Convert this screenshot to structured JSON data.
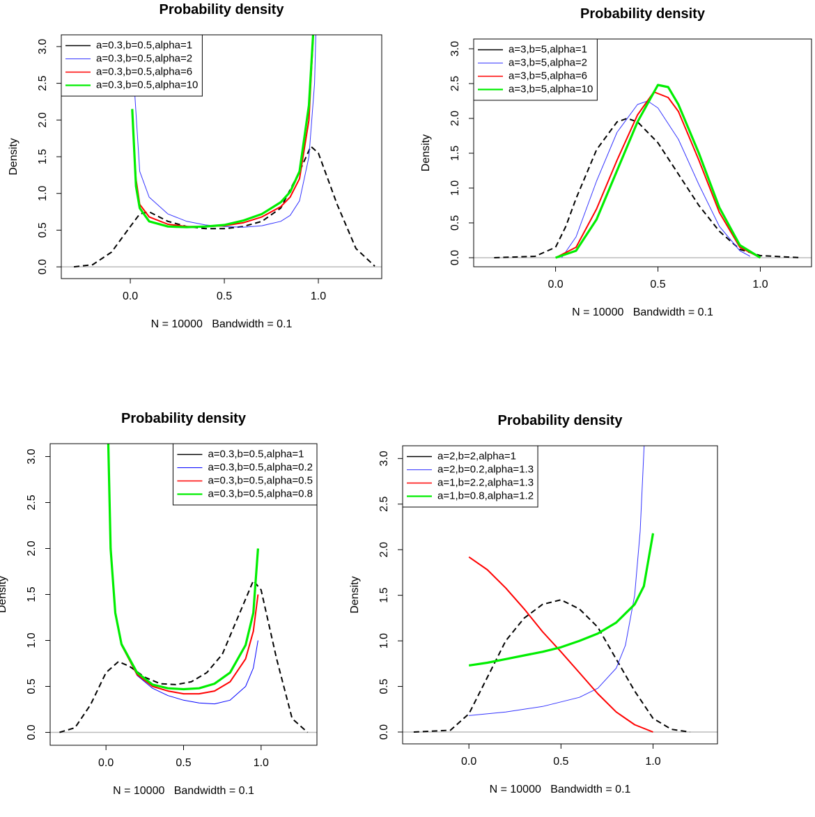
{
  "chart_data": [
    {
      "type": "line",
      "title": "Probability density",
      "xlabel": "N = 10000   Bandwidth = 0.1",
      "ylabel": "Density",
      "xlim": [
        -0.367,
        1.337
      ],
      "ylim": [
        -0.16,
        3.16
      ],
      "xticks": [
        {
          "value": 0,
          "label": "0.0"
        },
        0.5,
        {
          "value": 1,
          "label": "1.0"
        }
      ],
      "yticks": [
        {
          "value": 0,
          "label": "0.0"
        },
        0.5,
        {
          "value": 1,
          "label": "1.0"
        },
        1.5,
        {
          "value": 2,
          "label": "2.0"
        },
        2.5,
        {
          "value": 3,
          "label": "3.0"
        }
      ],
      "legend": "top-left",
      "series": [
        {
          "name": "a=0.3,b=0.5,alpha=1",
          "color": "#000000",
          "style": "dashed",
          "x": [
            -0.3,
            -0.2,
            -0.1,
            0.0,
            0.05,
            0.1,
            0.2,
            0.3,
            0.4,
            0.5,
            0.6,
            0.7,
            0.8,
            0.9,
            0.96,
            1.0,
            1.1,
            1.2,
            1.3
          ],
          "values": [
            0,
            0.03,
            0.2,
            0.55,
            0.72,
            0.75,
            0.62,
            0.55,
            0.52,
            0.52,
            0.55,
            0.62,
            0.8,
            1.3,
            1.64,
            1.55,
            0.85,
            0.25,
            0.01
          ]
        },
        {
          "name": "a=0.3,b=0.5,alpha=2",
          "color": "#3333ff",
          "x": [
            0.01,
            0.02,
            0.05,
            0.1,
            0.2,
            0.3,
            0.4,
            0.5,
            0.6,
            0.7,
            0.8,
            0.85,
            0.9,
            0.95,
            0.98,
            0.99
          ],
          "values": [
            3.5,
            2.5,
            1.3,
            0.95,
            0.72,
            0.62,
            0.57,
            0.55,
            0.54,
            0.56,
            0.62,
            0.7,
            0.9,
            1.5,
            2.5,
            3.5
          ]
        },
        {
          "name": "a=0.3,b=0.5,alpha=6",
          "color": "#ff0000",
          "x": [
            0.01,
            0.03,
            0.05,
            0.1,
            0.2,
            0.3,
            0.4,
            0.5,
            0.6,
            0.7,
            0.8,
            0.85,
            0.9,
            0.95,
            0.98
          ],
          "values": [
            2.1,
            1.2,
            0.85,
            0.68,
            0.58,
            0.55,
            0.55,
            0.56,
            0.6,
            0.68,
            0.82,
            0.95,
            1.2,
            2.0,
            3.5
          ]
        },
        {
          "name": "a=0.3,b=0.5,alpha=10",
          "color": "#00ee00",
          "x": [
            0.01,
            0.03,
            0.05,
            0.1,
            0.2,
            0.3,
            0.4,
            0.5,
            0.6,
            0.7,
            0.8,
            0.85,
            0.9,
            0.95,
            0.98
          ],
          "values": [
            2.15,
            1.1,
            0.8,
            0.62,
            0.55,
            0.54,
            0.55,
            0.57,
            0.63,
            0.72,
            0.88,
            1.02,
            1.3,
            2.2,
            3.5
          ]
        }
      ]
    },
    {
      "type": "line",
      "title": "Probability density",
      "xlabel": "N = 10000   Bandwidth = 0.1",
      "ylabel": "Density",
      "xlim": [
        -0.4,
        1.25
      ],
      "ylim": [
        -0.13,
        3.14
      ],
      "xticks": [
        {
          "value": 0,
          "label": "0.0"
        },
        0.5,
        {
          "value": 1,
          "label": "1.0"
        }
      ],
      "yticks": [
        {
          "value": 0,
          "label": "0.0"
        },
        0.5,
        {
          "value": 1,
          "label": "1.0"
        },
        1.5,
        {
          "value": 2,
          "label": "2.0"
        },
        2.5,
        {
          "value": 3,
          "label": "3.0"
        }
      ],
      "legend": "top-left",
      "series": [
        {
          "name": "a=3,b=5,alpha=1",
          "color": "#000000",
          "style": "dashed",
          "x": [
            -0.3,
            -0.1,
            0.0,
            0.05,
            0.1,
            0.2,
            0.3,
            0.35,
            0.4,
            0.5,
            0.6,
            0.7,
            0.8,
            0.9,
            1.0,
            1.2
          ],
          "values": [
            0,
            0.02,
            0.15,
            0.45,
            0.85,
            1.55,
            1.95,
            2.0,
            1.95,
            1.65,
            1.2,
            0.75,
            0.38,
            0.12,
            0.03,
            0
          ]
        },
        {
          "name": "a=3,b=5,alpha=2",
          "color": "#3333ff",
          "x": [
            0.03,
            0.1,
            0.2,
            0.3,
            0.4,
            0.45,
            0.5,
            0.6,
            0.7,
            0.8,
            0.9,
            0.95
          ],
          "values": [
            0,
            0.3,
            1.1,
            1.8,
            2.2,
            2.25,
            2.15,
            1.7,
            1.05,
            0.45,
            0.1,
            0.02
          ]
        },
        {
          "name": "a=3,b=5,alpha=6",
          "color": "#ff0000",
          "x": [
            0.0,
            0.1,
            0.2,
            0.3,
            0.4,
            0.48,
            0.55,
            0.6,
            0.7,
            0.8,
            0.9,
            1.0
          ],
          "values": [
            0,
            0.15,
            0.7,
            1.4,
            2.05,
            2.38,
            2.3,
            2.1,
            1.4,
            0.65,
            0.15,
            0
          ]
        },
        {
          "name": "a=3,b=5,alpha=10",
          "color": "#00ee00",
          "x": [
            0.0,
            0.1,
            0.2,
            0.3,
            0.4,
            0.5,
            0.55,
            0.6,
            0.7,
            0.8,
            0.9,
            1.0
          ],
          "values": [
            0,
            0.1,
            0.55,
            1.25,
            1.95,
            2.48,
            2.45,
            2.2,
            1.5,
            0.72,
            0.18,
            0
          ]
        }
      ]
    },
    {
      "type": "line",
      "title": "Probability density",
      "xlabel": "N = 10000   Bandwidth = 0.1",
      "ylabel": "Density",
      "xlim": [
        -0.36,
        1.36
      ],
      "ylim": [
        -0.14,
        3.14
      ],
      "xticks": [
        {
          "value": 0,
          "label": "0.0"
        },
        0.5,
        {
          "value": 1,
          "label": "1.0"
        }
      ],
      "yticks": [
        {
          "value": 0,
          "label": "0.0"
        },
        0.5,
        {
          "value": 1,
          "label": "1.0"
        },
        1.5,
        {
          "value": 2,
          "label": "2.0"
        },
        2.5,
        {
          "value": 3,
          "label": "3.0"
        }
      ],
      "legend": "top-right",
      "series": [
        {
          "name": "a=0.3,b=0.5,alpha=1",
          "color": "#000000",
          "style": "dashed",
          "x": [
            -0.3,
            -0.2,
            -0.1,
            0.0,
            0.08,
            0.15,
            0.25,
            0.35,
            0.45,
            0.55,
            0.65,
            0.75,
            0.85,
            0.95,
            1.0,
            1.1,
            1.2,
            1.3
          ],
          "values": [
            0,
            0.05,
            0.3,
            0.65,
            0.77,
            0.72,
            0.6,
            0.53,
            0.52,
            0.55,
            0.65,
            0.85,
            1.25,
            1.65,
            1.55,
            0.8,
            0.15,
            0
          ]
        },
        {
          "name": "a=0.3,b=0.5,alpha=0.2",
          "color": "#0000ff",
          "x": [
            0.01,
            0.03,
            0.06,
            0.1,
            0.2,
            0.3,
            0.4,
            0.5,
            0.6,
            0.7,
            0.8,
            0.9,
            0.95,
            0.98
          ],
          "values": [
            3.5,
            2.0,
            1.3,
            0.95,
            0.62,
            0.48,
            0.4,
            0.35,
            0.32,
            0.31,
            0.35,
            0.5,
            0.7,
            1.0
          ]
        },
        {
          "name": "a=0.3,b=0.5,alpha=0.5",
          "color": "#ff0000",
          "x": [
            0.01,
            0.03,
            0.06,
            0.1,
            0.2,
            0.3,
            0.4,
            0.5,
            0.6,
            0.7,
            0.8,
            0.9,
            0.95,
            0.98
          ],
          "values": [
            3.5,
            2.0,
            1.3,
            0.95,
            0.63,
            0.5,
            0.45,
            0.42,
            0.42,
            0.45,
            0.55,
            0.8,
            1.1,
            1.5
          ]
        },
        {
          "name": "a=0.3,b=0.5,alpha=0.8",
          "color": "#00ee00",
          "x": [
            0.01,
            0.03,
            0.06,
            0.1,
            0.2,
            0.3,
            0.4,
            0.5,
            0.6,
            0.7,
            0.8,
            0.9,
            0.95,
            0.98
          ],
          "values": [
            3.5,
            2.0,
            1.3,
            0.96,
            0.65,
            0.52,
            0.48,
            0.47,
            0.48,
            0.53,
            0.65,
            0.95,
            1.3,
            2.0
          ]
        }
      ]
    },
    {
      "type": "line",
      "title": "Probability density",
      "xlabel": "N = 10000   Bandwidth = 0.1",
      "ylabel": "Density",
      "xlim": [
        -0.36,
        1.35
      ],
      "ylim": [
        -0.13,
        3.14
      ],
      "xticks": [
        {
          "value": 0,
          "label": "0.0"
        },
        0.5,
        {
          "value": 1,
          "label": "1.0"
        }
      ],
      "yticks": [
        {
          "value": 0,
          "label": "0.0"
        },
        0.5,
        {
          "value": 1,
          "label": "1.0"
        },
        1.5,
        {
          "value": 2,
          "label": "2.0"
        },
        2.5,
        {
          "value": 3,
          "label": "3.0"
        }
      ],
      "legend": "top-left",
      "series": [
        {
          "name": "a=2,b=2,alpha=1",
          "color": "#000000",
          "style": "dashed",
          "x": [
            -0.3,
            -0.1,
            0.0,
            0.1,
            0.2,
            0.3,
            0.4,
            0.5,
            0.6,
            0.7,
            0.8,
            0.9,
            1.0,
            1.1,
            1.2
          ],
          "values": [
            0,
            0.02,
            0.2,
            0.6,
            1.0,
            1.25,
            1.4,
            1.45,
            1.35,
            1.15,
            0.8,
            0.45,
            0.15,
            0.03,
            0
          ]
        },
        {
          "name": "a=2,b=0.2,alpha=1.3",
          "color": "#3333ff",
          "x": [
            0.0,
            0.2,
            0.4,
            0.6,
            0.7,
            0.8,
            0.85,
            0.9,
            0.93,
            0.96
          ],
          "values": [
            0.18,
            0.22,
            0.28,
            0.38,
            0.48,
            0.7,
            0.95,
            1.5,
            2.2,
            3.5
          ]
        },
        {
          "name": "a=1,b=2.2,alpha=1.3",
          "color": "#ff0000",
          "x": [
            0.0,
            0.1,
            0.2,
            0.3,
            0.4,
            0.5,
            0.6,
            0.7,
            0.8,
            0.9,
            1.0
          ],
          "values": [
            1.92,
            1.78,
            1.58,
            1.35,
            1.1,
            0.88,
            0.65,
            0.42,
            0.22,
            0.08,
            0
          ]
        },
        {
          "name": "a=1,b=0.8,alpha=1.2",
          "color": "#00ee00",
          "x": [
            0.0,
            0.1,
            0.2,
            0.3,
            0.4,
            0.5,
            0.6,
            0.7,
            0.8,
            0.9,
            0.95,
            1.0
          ],
          "values": [
            0.73,
            0.76,
            0.8,
            0.84,
            0.88,
            0.93,
            1.0,
            1.08,
            1.2,
            1.4,
            1.6,
            2.18
          ]
        }
      ]
    }
  ]
}
